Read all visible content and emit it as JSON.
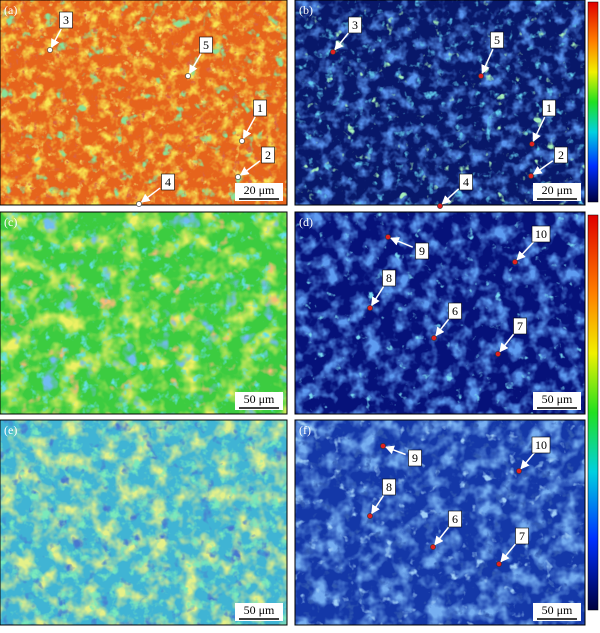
{
  "panels": [
    {
      "tag": "(a)",
      "scale_bar": "20 μm",
      "markers": [
        "3",
        "5",
        "1",
        "2",
        "4"
      ]
    },
    {
      "tag": "(b)",
      "scale_bar": "20 μm",
      "markers": [
        "3",
        "5",
        "1",
        "2",
        "4"
      ]
    },
    {
      "tag": "(c)",
      "scale_bar": "50 μm",
      "markers": []
    },
    {
      "tag": "(d)",
      "scale_bar": "50 μm",
      "markers": [
        "9",
        "10",
        "8",
        "6",
        "7"
      ]
    },
    {
      "tag": "(e)",
      "scale_bar": "50 μm",
      "markers": []
    },
    {
      "tag": "(f)",
      "scale_bar": "50 μm",
      "markers": [
        "9",
        "10",
        "8",
        "6",
        "7"
      ]
    }
  ]
}
